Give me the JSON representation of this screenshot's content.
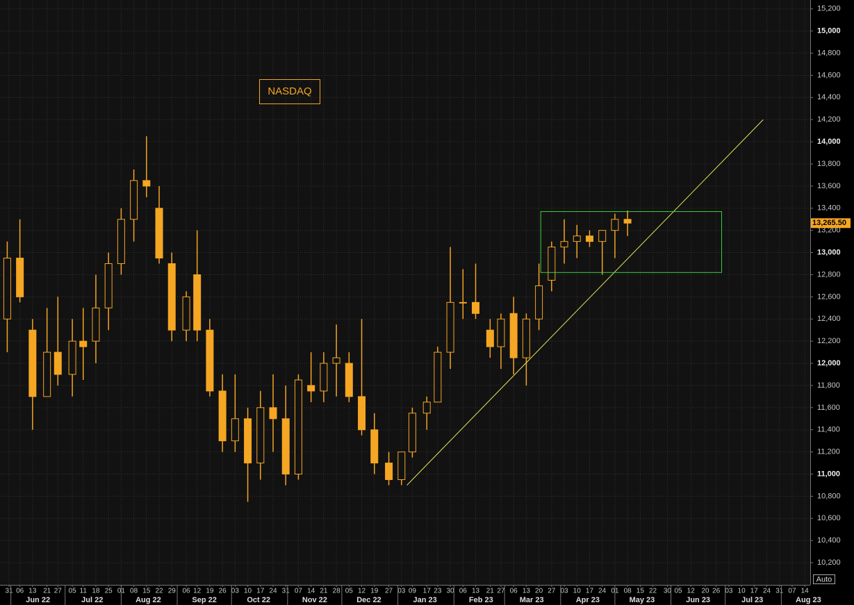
{
  "chart_data": {
    "type": "candlestick",
    "title": "NASDAQ",
    "color": "#f5a623",
    "grid": true,
    "x": [
      "2022-05-30",
      "2022-06-06",
      "2022-06-13",
      "2022-06-21",
      "2022-06-27",
      "2022-07-05",
      "2022-07-11",
      "2022-07-18",
      "2022-07-25",
      "2022-08-01",
      "2022-08-08",
      "2022-08-15",
      "2022-08-22",
      "2022-08-29",
      "2022-09-06",
      "2022-09-12",
      "2022-09-19",
      "2022-09-26",
      "2022-10-03",
      "2022-10-10",
      "2022-10-17",
      "2022-10-24",
      "2022-10-31",
      "2022-11-07",
      "2022-11-14",
      "2022-11-21",
      "2022-11-28",
      "2022-12-05",
      "2022-12-12",
      "2022-12-19",
      "2022-12-27",
      "2023-01-03",
      "2023-01-09",
      "2023-01-17",
      "2023-01-23",
      "2023-01-30",
      "2023-02-06",
      "2023-02-13",
      "2023-02-21",
      "2023-02-27",
      "2023-03-06",
      "2023-03-13",
      "2023-03-20",
      "2023-03-27",
      "2023-04-03",
      "2023-04-10",
      "2023-04-17",
      "2023-04-24",
      "2023-05-01",
      "2023-05-08"
    ],
    "open": [
      12400,
      12950,
      12300,
      11700,
      12100,
      11900,
      12200,
      12200,
      12500,
      12900,
      13300,
      13650,
      13400,
      12900,
      12300,
      12800,
      12300,
      11750,
      11300,
      11500,
      11100,
      11600,
      11500,
      11000,
      11800,
      11750,
      12000,
      12000,
      11700,
      11400,
      11100,
      10950,
      11200,
      11550,
      11650,
      12100,
      12550,
      12550,
      12300,
      12150,
      12450,
      12050,
      12400,
      12750,
      13050,
      13100,
      13150,
      13100,
      13200,
      13300
    ],
    "high": [
      13100,
      13300,
      12400,
      12500,
      12600,
      12400,
      12500,
      12800,
      13000,
      13400,
      13750,
      14050,
      13600,
      13000,
      12650,
      13200,
      12400,
      11900,
      11900,
      11600,
      11750,
      11900,
      11800,
      11900,
      12100,
      12100,
      12350,
      12100,
      12400,
      11550,
      11200,
      11200,
      11600,
      11700,
      12150,
      13050,
      12850,
      12900,
      12400,
      12450,
      12600,
      12450,
      12900,
      13100,
      13300,
      13250,
      13200,
      13200,
      13350,
      13380
    ],
    "low": [
      12100,
      12550,
      11400,
      11700,
      11800,
      11700,
      11850,
      12000,
      12300,
      12800,
      13100,
      13500,
      12900,
      12200,
      12200,
      12200,
      11700,
      11200,
      11200,
      10750,
      10950,
      11200,
      10900,
      10950,
      11650,
      11650,
      11700,
      11650,
      11350,
      11000,
      10900,
      10900,
      11150,
      11400,
      11650,
      11950,
      12400,
      12400,
      12050,
      11950,
      11900,
      11800,
      12300,
      12650,
      12900,
      12950,
      13050,
      12800,
      12950,
      13150
    ],
    "close": [
      12950,
      12600,
      11700,
      12100,
      11900,
      12200,
      12150,
      12500,
      12900,
      13300,
      13650,
      13600,
      12950,
      12300,
      12600,
      12300,
      11750,
      11300,
      11500,
      11100,
      11600,
      11500,
      11000,
      11850,
      11750,
      12000,
      12050,
      11700,
      11400,
      11100,
      10950,
      11200,
      11550,
      11650,
      12100,
      12550,
      12550,
      12450,
      12150,
      12400,
      12050,
      12400,
      12700,
      13050,
      13100,
      13150,
      13100,
      13200,
      13300,
      13265.5
    ],
    "last_label": "13,265.50",
    "xlim": [
      "2022-05-26",
      "2023-08-17"
    ],
    "ylim": [
      10000,
      15280
    ],
    "yticks": [
      {
        "value": 10200,
        "label": "10,200"
      },
      {
        "value": 10400,
        "label": "10,400"
      },
      {
        "value": 10600,
        "label": "10,600"
      },
      {
        "value": 10800,
        "label": "10,800"
      },
      {
        "value": 11000,
        "label": "11,000"
      },
      {
        "value": 11200,
        "label": "11,200"
      },
      {
        "value": 11400,
        "label": "11,400"
      },
      {
        "value": 11600,
        "label": "11,600"
      },
      {
        "value": 11800,
        "label": "11,800"
      },
      {
        "value": 12000,
        "label": "12,000"
      },
      {
        "value": 12200,
        "label": "12,200"
      },
      {
        "value": 12400,
        "label": "12,400"
      },
      {
        "value": 12600,
        "label": "12,600"
      },
      {
        "value": 12800,
        "label": "12,800"
      },
      {
        "value": 13000,
        "label": "13,000"
      },
      {
        "value": 13200,
        "label": "13,200"
      },
      {
        "value": 13400,
        "label": "13,400"
      },
      {
        "value": 13600,
        "label": "13,600"
      },
      {
        "value": 13800,
        "label": "13,800"
      },
      {
        "value": 14000,
        "label": "14,000"
      },
      {
        "value": 14200,
        "label": "14,200"
      },
      {
        "value": 14400,
        "label": "14,400"
      },
      {
        "value": 14600,
        "label": "14,600"
      },
      {
        "value": 14800,
        "label": "14,800"
      },
      {
        "value": 15000,
        "label": "15,000"
      },
      {
        "value": 15200,
        "label": "15,200"
      }
    ],
    "xticks": [
      {
        "value": "2022-05-31",
        "label": "31"
      },
      {
        "value": "2022-06-06",
        "label": "06"
      },
      {
        "value": "2022-06-13",
        "label": "13"
      },
      {
        "value": "2022-06-21",
        "label": "21"
      },
      {
        "value": "2022-06-27",
        "label": "27"
      },
      {
        "value": "2022-07-05",
        "label": "05"
      },
      {
        "value": "2022-07-11",
        "label": "11"
      },
      {
        "value": "2022-07-18",
        "label": "18"
      },
      {
        "value": "2022-07-25",
        "label": "25"
      },
      {
        "value": "2022-08-01",
        "label": "01"
      },
      {
        "value": "2022-08-08",
        "label": "08"
      },
      {
        "value": "2022-08-15",
        "label": "15"
      },
      {
        "value": "2022-08-22",
        "label": "22"
      },
      {
        "value": "2022-08-29",
        "label": "29"
      },
      {
        "value": "2022-09-06",
        "label": "06"
      },
      {
        "value": "2022-09-12",
        "label": "12"
      },
      {
        "value": "2022-09-19",
        "label": "19"
      },
      {
        "value": "2022-09-26",
        "label": "26"
      },
      {
        "value": "2022-10-03",
        "label": "03"
      },
      {
        "value": "2022-10-10",
        "label": "10"
      },
      {
        "value": "2022-10-17",
        "label": "17"
      },
      {
        "value": "2022-10-24",
        "label": "24"
      },
      {
        "value": "2022-10-31",
        "label": "31"
      },
      {
        "value": "2022-11-07",
        "label": "07"
      },
      {
        "value": "2022-11-14",
        "label": "14"
      },
      {
        "value": "2022-11-21",
        "label": "21"
      },
      {
        "value": "2022-11-28",
        "label": "28"
      },
      {
        "value": "2022-12-05",
        "label": "05"
      },
      {
        "value": "2022-12-12",
        "label": "12"
      },
      {
        "value": "2022-12-19",
        "label": "19"
      },
      {
        "value": "2022-12-27",
        "label": "27"
      },
      {
        "value": "2023-01-03",
        "label": "03"
      },
      {
        "value": "2023-01-09",
        "label": "09"
      },
      {
        "value": "2023-01-17",
        "label": "17"
      },
      {
        "value": "2023-01-23",
        "label": "23"
      },
      {
        "value": "2023-01-30",
        "label": "30"
      },
      {
        "value": "2023-02-06",
        "label": "06"
      },
      {
        "value": "2023-02-13",
        "label": "13"
      },
      {
        "value": "2023-02-21",
        "label": "21"
      },
      {
        "value": "2023-02-27",
        "label": "27"
      },
      {
        "value": "2023-03-06",
        "label": "06"
      },
      {
        "value": "2023-03-13",
        "label": "13"
      },
      {
        "value": "2023-03-20",
        "label": "20"
      },
      {
        "value": "2023-03-27",
        "label": "27"
      },
      {
        "value": "2023-04-03",
        "label": "03"
      },
      {
        "value": "2023-04-10",
        "label": "10"
      },
      {
        "value": "2023-04-17",
        "label": "17"
      },
      {
        "value": "2023-04-24",
        "label": "24"
      },
      {
        "value": "2023-05-01",
        "label": "01"
      },
      {
        "value": "2023-05-08",
        "label": "08"
      },
      {
        "value": "2023-05-15",
        "label": "15"
      },
      {
        "value": "2023-05-22",
        "label": "22"
      },
      {
        "value": "2023-05-30",
        "label": "30"
      },
      {
        "value": "2023-06-05",
        "label": "05"
      },
      {
        "value": "2023-06-12",
        "label": "12"
      },
      {
        "value": "2023-06-20",
        "label": "20"
      },
      {
        "value": "2023-06-26",
        "label": "26"
      },
      {
        "value": "2023-07-03",
        "label": "03"
      },
      {
        "value": "2023-07-10",
        "label": "10"
      },
      {
        "value": "2023-07-17",
        "label": "17"
      },
      {
        "value": "2023-07-24",
        "label": "24"
      },
      {
        "value": "2023-07-31",
        "label": "31"
      },
      {
        "value": "2023-08-07",
        "label": "07"
      },
      {
        "value": "2023-08-14",
        "label": "14"
      }
    ],
    "months": [
      {
        "value": "2022-06-16",
        "label": "Jun 22"
      },
      {
        "value": "2022-07-16",
        "label": "Jul 22"
      },
      {
        "value": "2022-08-16",
        "label": "Aug 22"
      },
      {
        "value": "2022-09-16",
        "label": "Sep 22"
      },
      {
        "value": "2022-10-16",
        "label": "Oct 22"
      },
      {
        "value": "2022-11-16",
        "label": "Nov 22"
      },
      {
        "value": "2022-12-16",
        "label": "Dec 22"
      },
      {
        "value": "2023-01-16",
        "label": "Jan 23"
      },
      {
        "value": "2023-02-16",
        "label": "Feb 23"
      },
      {
        "value": "2023-03-16",
        "label": "Mar 23"
      },
      {
        "value": "2023-04-16",
        "label": "Apr 23"
      },
      {
        "value": "2023-05-16",
        "label": "May 23"
      },
      {
        "value": "2023-06-16",
        "label": "Jun 23"
      },
      {
        "value": "2023-07-16",
        "label": "Jul 23"
      },
      {
        "value": "2023-08-16",
        "label": "Aug 23"
      }
    ],
    "trendline": {
      "x": [
        "2023-01-06",
        "2023-07-22"
      ],
      "y": [
        10900,
        14200
      ],
      "color": "#e6e65a"
    },
    "box": {
      "x": [
        "2023-03-21",
        "2023-06-29"
      ],
      "y": [
        12820,
        13370
      ],
      "color": "#3fcf3f"
    },
    "auto_button": "Auto"
  }
}
